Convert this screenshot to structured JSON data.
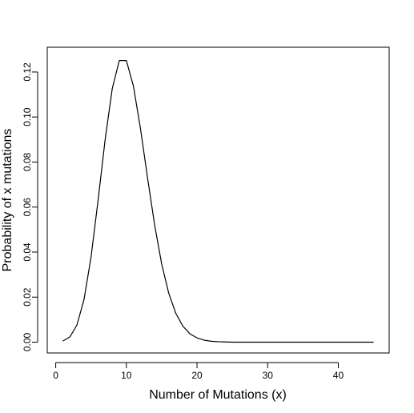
{
  "chart_data": {
    "type": "line",
    "title": "",
    "xlabel": "Number of Mutations (x)",
    "ylabel": "Probability of x mutations",
    "xlim": [
      -1.2,
      47.2
    ],
    "ylim": [
      -0.0048,
      0.131
    ],
    "x_ticks": [
      0,
      10,
      20,
      30,
      40
    ],
    "y_ticks": [
      0.0,
      0.02,
      0.04,
      0.06,
      0.08,
      0.1,
      0.12
    ],
    "x_tick_labels": [
      "0",
      "10",
      "20",
      "30",
      "40"
    ],
    "y_tick_labels": [
      "0.00",
      "0.02",
      "0.04",
      "0.06",
      "0.08",
      "0.10",
      "0.12"
    ],
    "grid": false,
    "legend": "none",
    "line_color": "#000000",
    "series": [
      {
        "x": [
          1,
          2,
          3,
          4,
          5,
          6,
          7,
          8,
          9,
          10,
          11,
          12,
          13,
          14,
          15,
          16,
          17,
          18,
          19,
          20,
          21,
          22,
          23,
          24,
          25,
          26,
          27,
          28,
          29,
          30,
          31,
          32,
          33,
          34,
          35,
          36,
          37,
          38,
          39,
          40,
          41,
          42,
          43,
          44,
          45
        ],
        "values": [
          0.0005,
          0.0023,
          0.0076,
          0.0189,
          0.0378,
          0.0631,
          0.0901,
          0.1126,
          0.1251,
          0.1251,
          0.1137,
          0.0948,
          0.0729,
          0.0521,
          0.0347,
          0.0217,
          0.0128,
          0.0071,
          0.0037,
          0.0019,
          0.0009,
          0.0004,
          0.0002,
          0.0001,
          0.0,
          0.0,
          0.0,
          0.0,
          0.0,
          0.0,
          0.0,
          0.0,
          0.0,
          0.0,
          0.0,
          0.0,
          0.0,
          0.0,
          0.0,
          0.0,
          0.0,
          0.0,
          0.0,
          0.0,
          0.0
        ]
      }
    ]
  }
}
